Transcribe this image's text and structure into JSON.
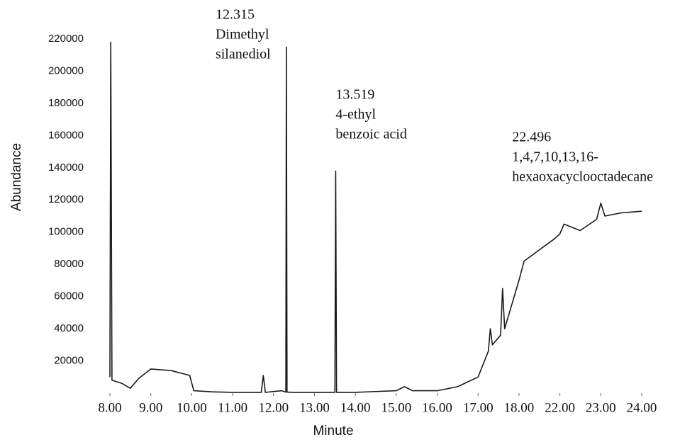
{
  "chart_data": {
    "type": "line",
    "xlabel": "Minute",
    "ylabel": "Abundance",
    "x": [
      8.0,
      8.02,
      8.05,
      8.3,
      8.5,
      8.7,
      9.0,
      9.5,
      9.95,
      10.05,
      10.5,
      11.0,
      11.7,
      11.75,
      11.8,
      12.2,
      12.3,
      12.315,
      12.33,
      12.5,
      13.0,
      13.5,
      13.519,
      13.54,
      14.0,
      15.0,
      15.2,
      15.4,
      16.0,
      16.5,
      17.0,
      17.25,
      17.3,
      17.35,
      17.55,
      17.6,
      17.65,
      18.0,
      18.5,
      21.5,
      22.0,
      22.1,
      22.496,
      22.9,
      23.0,
      23.1,
      23.5,
      24.0
    ],
    "values": [
      10000,
      218000,
      8000,
      6000,
      3000,
      9000,
      15000,
      14000,
      11000,
      1500,
      800,
      500,
      500,
      11000,
      500,
      1500,
      600,
      215000,
      600,
      500,
      500,
      500,
      138000,
      500,
      500,
      1500,
      4000,
      1500,
      1500,
      4000,
      10000,
      26000,
      40000,
      30000,
      36000,
      65000,
      40000,
      70000,
      82000,
      96000,
      99000,
      105000,
      101000,
      108000,
      118000,
      110000,
      112000,
      113000
    ],
    "color": "#1a1a1a",
    "xlim": [
      8,
      24
    ],
    "xticks": [
      {
        "value": 8,
        "label": "8.00"
      },
      {
        "value": 9,
        "label": "9.00"
      },
      {
        "value": 10,
        "label": "10.00"
      },
      {
        "value": 11,
        "label": "11.00"
      },
      {
        "value": 12,
        "label": "12.00"
      },
      {
        "value": 13,
        "label": "13.00"
      },
      {
        "value": 14,
        "label": "14.00"
      },
      {
        "value": 15,
        "label": "15.00"
      },
      {
        "value": 16,
        "label": "16.00"
      },
      {
        "value": 17,
        "label": "17.00"
      },
      {
        "value": 18,
        "label": "18.00"
      },
      {
        "value": 22,
        "label": "22.00"
      },
      {
        "value": 23,
        "label": "23.00"
      },
      {
        "value": 24,
        "label": "24.00"
      }
    ],
    "ylim": [
      0,
      220000
    ],
    "yticks": [
      20000,
      40000,
      60000,
      80000,
      100000,
      120000,
      140000,
      160000,
      180000,
      200000,
      220000
    ],
    "grid": false,
    "annotations": [
      {
        "x": 12.315,
        "text": [
          "Dimethyl",
          "silanediol"
        ]
      },
      {
        "x": 13.519,
        "text": [
          "4-ethyl",
          "benzoic acid"
        ]
      },
      {
        "x": 22.496,
        "text": [
          "1,4,7,10,13,16-",
          "hexaoxacyclooctadecane"
        ]
      }
    ]
  }
}
